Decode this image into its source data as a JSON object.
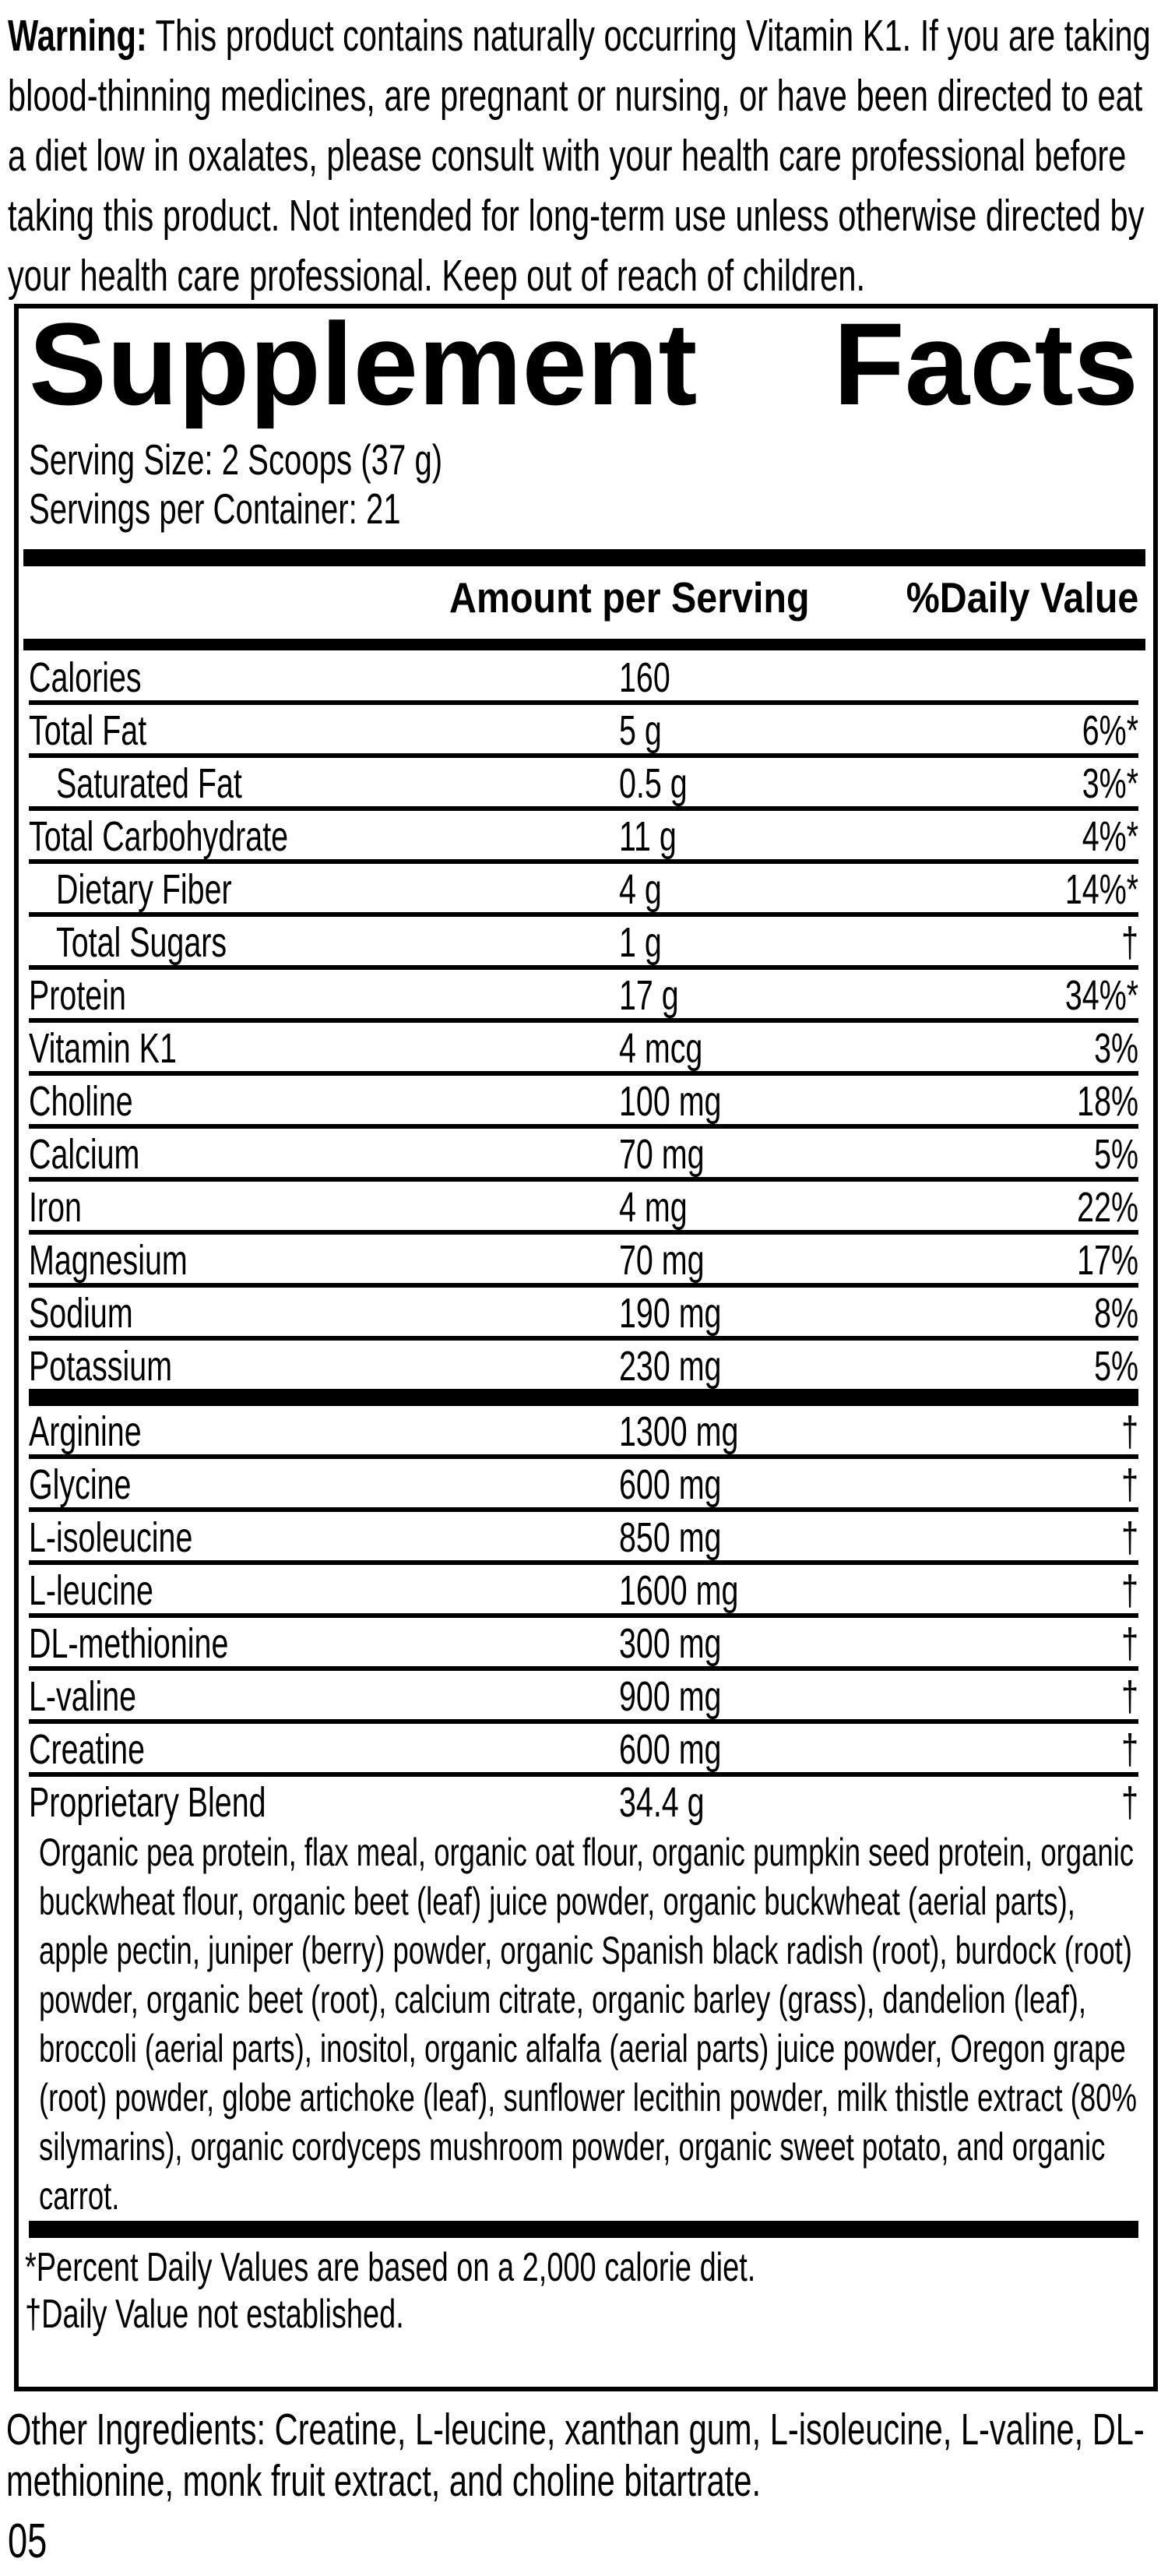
{
  "warning": {
    "label": "Warning:",
    "text": "This product contains naturally occurring Vitamin K1. If you are taking blood-thinning medicines, are pregnant or nursing, or have been directed to eat a diet low in oxalates, please consult with your health care professional before taking this product. Not intended for long-term use unless otherwise directed by your health care professional. Keep out of reach of children."
  },
  "panel": {
    "title_words": [
      "Supplement",
      "Facts"
    ],
    "serving_size": "Serving Size: 2 Scoops (37 g)",
    "servings_per_container": "Servings per Container: 21",
    "columns": {
      "amount": "Amount per Serving",
      "daily_value": "%Daily Value"
    },
    "nutrient_rows": [
      {
        "label": "Calories",
        "indent": false,
        "amount": "160",
        "dv": ""
      },
      {
        "label": "Total Fat",
        "indent": false,
        "amount": "5 g",
        "dv": "6%*"
      },
      {
        "label": "Saturated Fat",
        "indent": true,
        "amount": "0.5 g",
        "dv": "3%*"
      },
      {
        "label": "Total Carbohydrate",
        "indent": false,
        "amount": "11 g",
        "dv": "4%*"
      },
      {
        "label": "Dietary Fiber",
        "indent": true,
        "amount": "4 g",
        "dv": "14%*"
      },
      {
        "label": "Total Sugars",
        "indent": true,
        "amount": "1 g",
        "dv": "†"
      },
      {
        "label": "Protein",
        "indent": false,
        "amount": "17 g",
        "dv": "34%*"
      },
      {
        "label": "Vitamin K1",
        "indent": false,
        "amount": "4 mcg",
        "dv": "3%"
      },
      {
        "label": "Choline",
        "indent": false,
        "amount": "100 mg",
        "dv": "18%"
      },
      {
        "label": "Calcium",
        "indent": false,
        "amount": "70 mg",
        "dv": "5%"
      },
      {
        "label": "Iron",
        "indent": false,
        "amount": "4 mg",
        "dv": "22%"
      },
      {
        "label": "Magnesium",
        "indent": false,
        "amount": "70 mg",
        "dv": "17%"
      },
      {
        "label": "Sodium",
        "indent": false,
        "amount": "190 mg",
        "dv": "8%"
      },
      {
        "label": "Potassium",
        "indent": false,
        "amount": "230 mg",
        "dv": "5%"
      }
    ],
    "amino_rows": [
      {
        "label": "Arginine",
        "indent": false,
        "amount": "1300 mg",
        "dv": "†"
      },
      {
        "label": "Glycine",
        "indent": false,
        "amount": "600 mg",
        "dv": "†"
      },
      {
        "label": "L-isoleucine",
        "indent": false,
        "amount": "850 mg",
        "dv": "†"
      },
      {
        "label": "L-leucine",
        "indent": false,
        "amount": "1600 mg",
        "dv": "†"
      },
      {
        "label": "DL-methionine",
        "indent": false,
        "amount": "300 mg",
        "dv": "†"
      },
      {
        "label": "L-valine",
        "indent": false,
        "amount": "900 mg",
        "dv": "†"
      },
      {
        "label": "Creatine",
        "indent": false,
        "amount": "600 mg",
        "dv": "†"
      }
    ],
    "proprietary": {
      "label": "Proprietary Blend",
      "amount": "34.4 g",
      "dv": "†",
      "description": "Organic pea protein, flax meal, organic oat flour, organic pumpkin seed protein, organic buckwheat flour, organic beet (leaf) juice powder, organic buckwheat (aerial parts), apple pectin, juniper (berry) powder, organic Spanish black radish (root), burdock (root) powder, organic beet (root), calcium citrate, organic barley (grass), dandelion (leaf), broccoli (aerial parts), inositol, organic alfalfa (aerial parts) juice powder, Oregon grape (root) powder, globe artichoke (leaf), sunflower lecithin powder, milk thistle extract (80% silymarins), organic cordyceps mushroom powder, organic sweet potato, and organic carrot."
    },
    "footnotes": [
      "*Percent Daily Values are based on a 2,000 calorie diet.",
      "†Daily Value not established."
    ]
  },
  "other_ingredients": {
    "label": "Other Ingredients:",
    "text": "Creatine, L-leucine, xanthan gum, L-isoleucine, L-valine, DL-methionine, monk fruit extract, and choline bitartrate."
  },
  "page_number": "05"
}
